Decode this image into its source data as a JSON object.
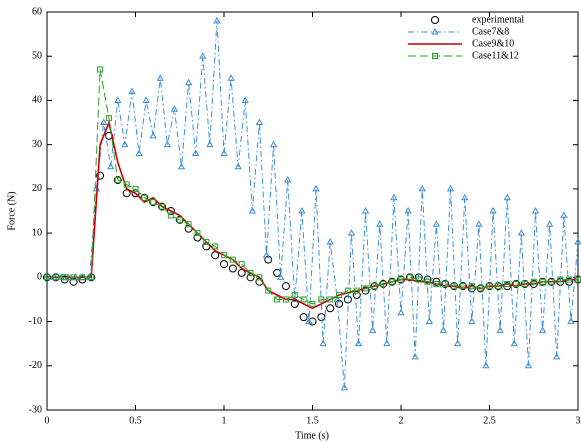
{
  "chart_data": {
    "type": "line",
    "xlabel": "Time (s)",
    "ylabel": "Force (N)",
    "xlim": [
      0,
      3
    ],
    "ylim": [
      -30,
      60
    ],
    "xticks": [
      0,
      0.5,
      1,
      1.5,
      2,
      2.5,
      3
    ],
    "yticks": [
      -30,
      -20,
      -10,
      0,
      10,
      20,
      30,
      40,
      50,
      60
    ],
    "legend": "upper right",
    "series": [
      {
        "name": "experimental",
        "color": "#000000",
        "linestyle": "none",
        "marker": "circle",
        "x": [
          0,
          0.05,
          0.1,
          0.15,
          0.2,
          0.25,
          0.3,
          0.35,
          0.4,
          0.45,
          0.5,
          0.55,
          0.6,
          0.65,
          0.7,
          0.75,
          0.8,
          0.85,
          0.9,
          0.95,
          1,
          1.05,
          1.1,
          1.15,
          1.2,
          1.25,
          1.3,
          1.35,
          1.4,
          1.45,
          1.5,
          1.55,
          1.6,
          1.65,
          1.7,
          1.75,
          1.8,
          1.85,
          1.9,
          1.95,
          2,
          2.05,
          2.1,
          2.15,
          2.2,
          2.25,
          2.3,
          2.35,
          2.4,
          2.45,
          2.5,
          2.55,
          2.6,
          2.65,
          2.7,
          2.75,
          2.8,
          2.85,
          2.9,
          2.95,
          3
        ],
        "values": [
          0,
          0,
          -0.5,
          -1,
          -0.5,
          0,
          23,
          32,
          22,
          19,
          19,
          18,
          17,
          16,
          15,
          13,
          11,
          9,
          7,
          5,
          3,
          2,
          1,
          0,
          -1,
          4,
          1,
          -2,
          -6,
          -9,
          -10,
          -9,
          -7,
          -6,
          -5,
          -4,
          -3,
          -2,
          -1.5,
          -1,
          -0.5,
          0,
          0,
          -0.5,
          -1,
          -1.5,
          -2,
          -2,
          -2.5,
          -2.5,
          -2,
          -2,
          -2,
          -1.5,
          -1.5,
          -1.5,
          -1,
          -1,
          -1,
          -1,
          -0.5
        ]
      },
      {
        "name": "Case7&8",
        "color": "#3a8fd9",
        "linestyle": "dashdot",
        "marker": "triangle",
        "x": [
          0,
          0.04,
          0.08,
          0.12,
          0.16,
          0.2,
          0.24,
          0.28,
          0.32,
          0.36,
          0.4,
          0.44,
          0.48,
          0.52,
          0.56,
          0.6,
          0.64,
          0.68,
          0.72,
          0.76,
          0.8,
          0.84,
          0.88,
          0.92,
          0.96,
          1,
          1.04,
          1.08,
          1.12,
          1.16,
          1.2,
          1.24,
          1.28,
          1.32,
          1.36,
          1.4,
          1.44,
          1.48,
          1.52,
          1.56,
          1.6,
          1.64,
          1.68,
          1.72,
          1.76,
          1.8,
          1.84,
          1.88,
          1.92,
          1.96,
          2,
          2.04,
          2.08,
          2.12,
          2.16,
          2.2,
          2.24,
          2.28,
          2.32,
          2.36,
          2.4,
          2.44,
          2.48,
          2.52,
          2.56,
          2.6,
          2.64,
          2.68,
          2.72,
          2.76,
          2.8,
          2.84,
          2.88,
          2.92,
          2.96,
          3
        ],
        "values": [
          0,
          0,
          0,
          0,
          0,
          0,
          0,
          20,
          35,
          25,
          40,
          30,
          42,
          28,
          40,
          32,
          45,
          30,
          38,
          25,
          44,
          28,
          50,
          30,
          58,
          28,
          45,
          25,
          40,
          15,
          35,
          5,
          30,
          0,
          22,
          -5,
          15,
          -10,
          20,
          -15,
          8,
          -5,
          -25,
          10,
          -15,
          15,
          -12,
          12,
          -15,
          18,
          -8,
          15,
          -18,
          20,
          -10,
          12,
          -12,
          20,
          -15,
          18,
          -10,
          12,
          -20,
          15,
          -12,
          18,
          -15,
          10,
          -20,
          15,
          -12,
          12,
          -18,
          14,
          -10,
          8
        ]
      },
      {
        "name": "Case9&10",
        "color": "#cc0000",
        "linestyle": "solid",
        "marker": "none",
        "x": [
          0,
          0.05,
          0.1,
          0.15,
          0.2,
          0.25,
          0.3,
          0.35,
          0.4,
          0.45,
          0.5,
          0.55,
          0.6,
          0.65,
          0.7,
          0.75,
          0.8,
          0.85,
          0.9,
          0.95,
          1,
          1.05,
          1.1,
          1.15,
          1.2,
          1.25,
          1.3,
          1.35,
          1.4,
          1.45,
          1.5,
          1.55,
          1.6,
          1.65,
          1.7,
          1.75,
          1.8,
          1.85,
          1.9,
          1.95,
          2,
          2.05,
          2.1,
          2.15,
          2.2,
          2.25,
          2.3,
          2.35,
          2.4,
          2.45,
          2.5,
          2.55,
          2.6,
          2.65,
          2.7,
          2.75,
          2.8,
          2.85,
          2.9,
          2.95,
          3
        ],
        "values": [
          0,
          0,
          0,
          0,
          0,
          0,
          30,
          35,
          26,
          20,
          19,
          17,
          18,
          16,
          15,
          14,
          12,
          10,
          8,
          6,
          5,
          4,
          2,
          1,
          0,
          -3,
          -4,
          -5,
          -5,
          -6,
          -7,
          -6,
          -5,
          -4,
          -3.5,
          -3,
          -2.5,
          -2,
          -1.5,
          -1,
          -0.5,
          -0.5,
          -1,
          -1,
          -1.5,
          -2,
          -2,
          -2.5,
          -2,
          -2.5,
          -2,
          -2,
          -1.5,
          -2,
          -1.5,
          -1.5,
          -1,
          -1,
          -1,
          -0.5,
          -0.5
        ]
      },
      {
        "name": "Case11&12",
        "color": "#2aa02a",
        "linestyle": "dashed",
        "marker": "square",
        "x": [
          0,
          0.05,
          0.1,
          0.15,
          0.2,
          0.25,
          0.3,
          0.35,
          0.4,
          0.45,
          0.5,
          0.55,
          0.6,
          0.65,
          0.7,
          0.75,
          0.8,
          0.85,
          0.9,
          0.95,
          1,
          1.05,
          1.1,
          1.15,
          1.2,
          1.25,
          1.3,
          1.35,
          1.4,
          1.45,
          1.5,
          1.55,
          1.6,
          1.65,
          1.7,
          1.75,
          1.8,
          1.85,
          1.9,
          1.95,
          2,
          2.05,
          2.1,
          2.15,
          2.2,
          2.25,
          2.3,
          2.35,
          2.4,
          2.45,
          2.5,
          2.55,
          2.6,
          2.65,
          2.7,
          2.75,
          2.8,
          2.85,
          2.9,
          2.95,
          3
        ],
        "values": [
          0,
          0,
          0,
          0,
          0,
          0,
          47,
          36,
          22,
          21,
          20,
          18,
          17,
          16,
          14,
          13,
          12,
          10,
          8,
          7,
          5,
          4,
          3,
          1,
          0,
          -3,
          -5,
          -5,
          -4,
          -5,
          -6,
          -5,
          -5,
          -4,
          -3,
          -3,
          -2.5,
          -2,
          -1.5,
          -1,
          -0.5,
          0,
          -0.5,
          -1,
          -1.5,
          -1.5,
          -2,
          -2,
          -2,
          -2.5,
          -2,
          -2,
          -1.5,
          -1.5,
          -1.5,
          -1,
          -1,
          -1,
          -0.5,
          -0.5,
          -0.5
        ]
      }
    ]
  }
}
